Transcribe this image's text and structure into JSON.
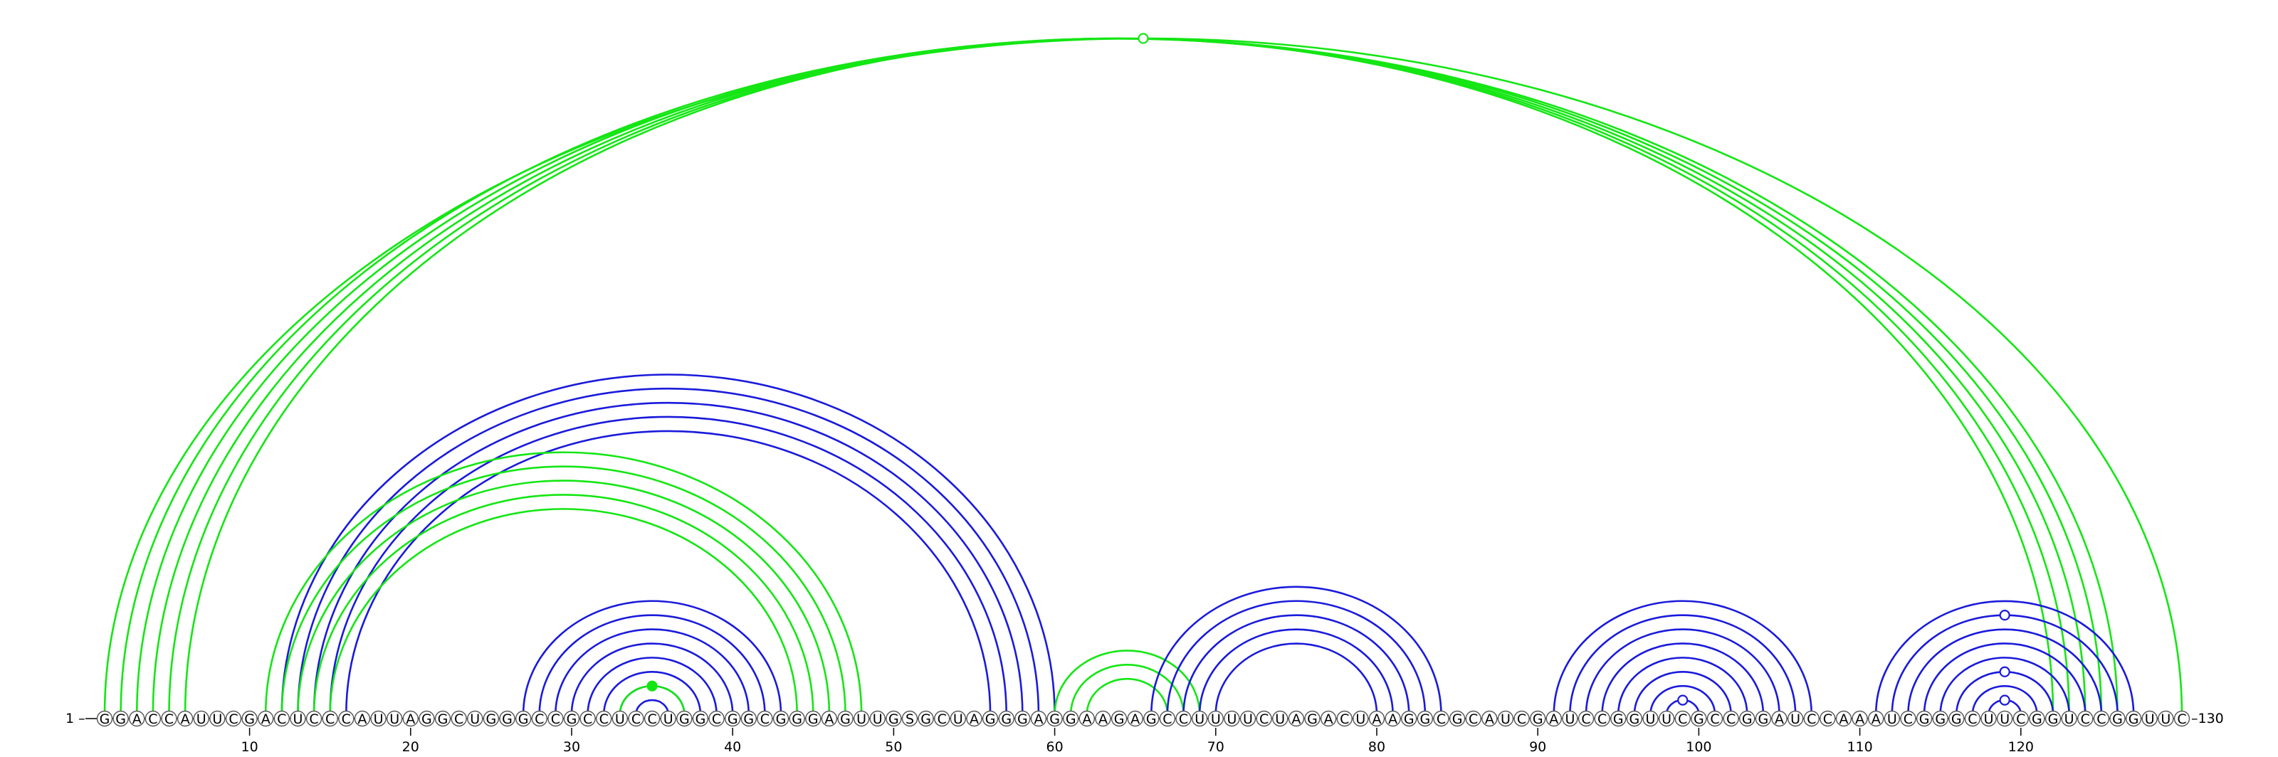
{
  "sequence": "GGACCAUUCGACUCCCAUUAGGCUGGGCCGCCUCCUGGCGGCGGGAGUUGSGCUAGGGAGGAAGAGCCUUUUCUAGACUAAGGCGCAUCGAUCCGGUUCGCCGGAUCCAAAUCGGGCUUCGGUCCGGUUC",
  "start_label": "1 –",
  "end_label": "–130",
  "ticks": [
    10,
    20,
    30,
    40,
    50,
    60,
    70,
    80,
    90,
    100,
    110,
    120
  ],
  "colors": {
    "blue": "#1a1adc",
    "green": "#14e614"
  },
  "arc_groups": [
    {
      "color": "green",
      "pairs": [
        [
          1,
          130
        ],
        [
          2,
          126
        ],
        [
          3,
          125
        ],
        [
          4,
          124
        ],
        [
          5,
          123
        ],
        [
          6,
          122
        ]
      ]
    },
    {
      "color": "blue",
      "pairs": [
        [
          12,
          60
        ],
        [
          13,
          59
        ],
        [
          14,
          58
        ],
        [
          15,
          57
        ],
        [
          16,
          56
        ]
      ]
    },
    {
      "color": "green",
      "pairs": [
        [
          11,
          48
        ],
        [
          12,
          47
        ],
        [
          13,
          46
        ],
        [
          14,
          45
        ],
        [
          15,
          44
        ]
      ]
    },
    {
      "color": "blue",
      "pairs": [
        [
          27,
          43
        ],
        [
          28,
          42
        ],
        [
          29,
          41
        ],
        [
          30,
          40
        ],
        [
          31,
          39
        ],
        [
          32,
          38
        ],
        [
          33,
          37
        ],
        [
          34,
          36
        ]
      ]
    },
    {
      "color": "green",
      "pairs": [
        [
          33,
          37
        ],
        [
          60,
          69
        ],
        [
          61,
          68
        ],
        [
          62,
          67
        ]
      ]
    },
    {
      "color": "blue",
      "pairs": [
        [
          66,
          84
        ],
        [
          67,
          83
        ],
        [
          68,
          82
        ],
        [
          69,
          81
        ],
        [
          70,
          80
        ]
      ]
    },
    {
      "color": "blue",
      "pairs": [
        [
          91,
          107
        ],
        [
          92,
          106
        ],
        [
          93,
          105
        ],
        [
          94,
          104
        ],
        [
          95,
          103
        ],
        [
          96,
          102
        ],
        [
          97,
          101
        ],
        [
          98,
          100
        ]
      ]
    },
    {
      "color": "blue",
      "pairs": [
        [
          111,
          127
        ],
        [
          112,
          126
        ],
        [
          113,
          125
        ],
        [
          114,
          124
        ],
        [
          115,
          123
        ],
        [
          116,
          122
        ],
        [
          117,
          121
        ],
        [
          118,
          120
        ]
      ]
    }
  ],
  "markers": [
    {
      "pair": [
        1,
        130
      ],
      "color": "green",
      "filled": false
    },
    {
      "pair": [
        33,
        37
      ],
      "color": "green",
      "filled": true
    },
    {
      "pair": [
        98,
        100
      ],
      "color": "blue",
      "filled": false
    },
    {
      "pair": [
        118,
        120
      ],
      "color": "blue",
      "filled": false
    },
    {
      "pair": [
        116,
        122
      ],
      "color": "blue",
      "filled": false
    },
    {
      "pair": [
        112,
        126
      ],
      "color": "blue",
      "filled": false
    }
  ]
}
